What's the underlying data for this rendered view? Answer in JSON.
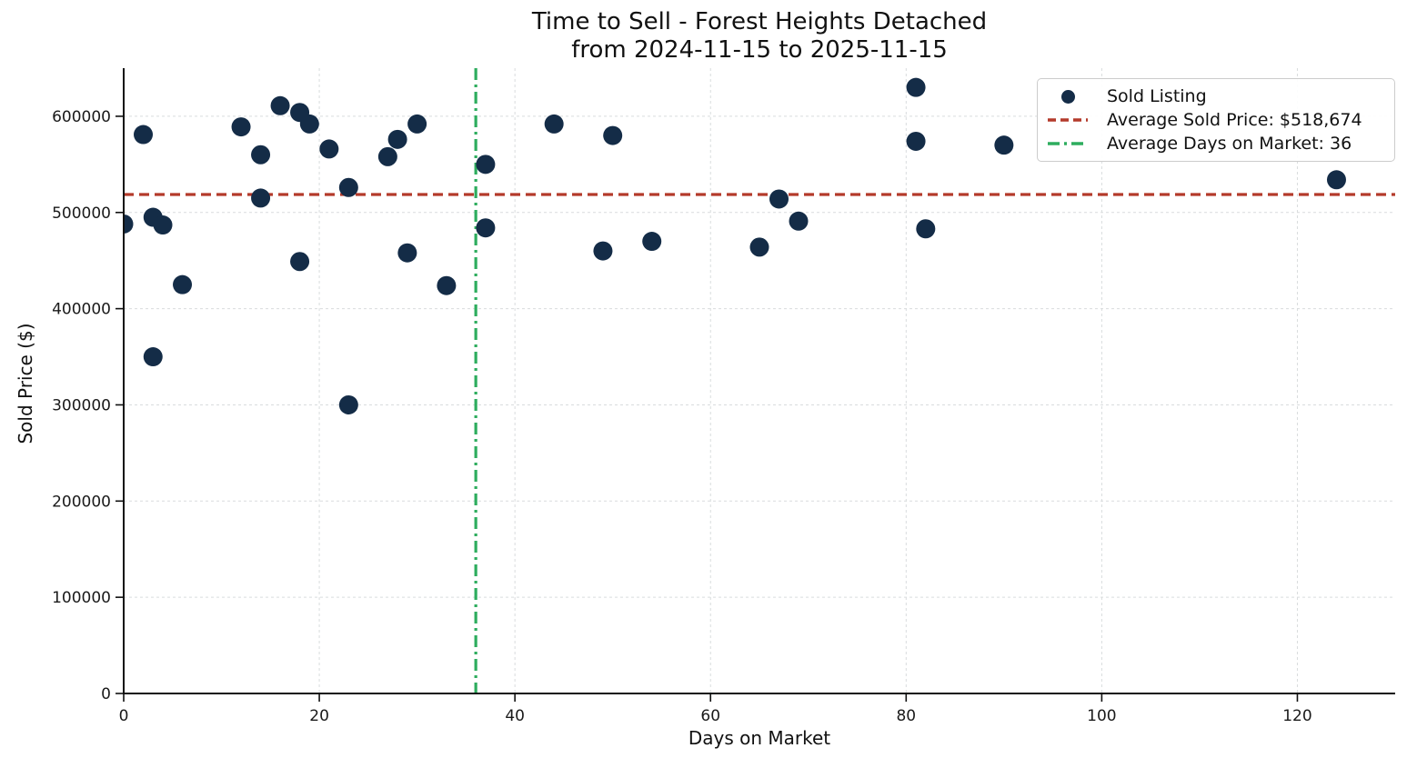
{
  "title": {
    "line1": "Time to Sell - Forest Heights Detached",
    "line2": "from 2024-11-15 to 2025-11-15"
  },
  "axes": {
    "xlabel": "Days on Market",
    "ylabel": "Sold Price ($)"
  },
  "legend": {
    "items": [
      {
        "label": "Sold Listing",
        "marker": "dot"
      },
      {
        "label": "Average Sold Price: $518,674",
        "marker": "red-dashed-line"
      },
      {
        "label": "Average Days on Market: 36",
        "marker": "green-dashdot-line"
      }
    ]
  },
  "colors": {
    "point": "#142c47",
    "avg_price_line": "#b43a2b",
    "avg_days_line": "#2ead5e",
    "grid": "#d9dcdd",
    "axis": "#111111",
    "tick_label": "#1a1a1a"
  },
  "chart_data": {
    "type": "scatter",
    "title": "Time to Sell - Forest Heights Detached",
    "subtitle": "from 2024-11-15 to 2025-11-15",
    "xlabel": "Days on Market",
    "ylabel": "Sold Price ($)",
    "xlim": [
      0,
      130
    ],
    "ylim": [
      0,
      650000
    ],
    "x_ticks": [
      0,
      20,
      40,
      60,
      80,
      100,
      120
    ],
    "y_ticks": [
      0,
      100000,
      200000,
      300000,
      400000,
      500000,
      600000
    ],
    "grid": true,
    "legend_position": "upper right",
    "avg_sold_price": 518674,
    "avg_days_on_market": 36,
    "series": [
      {
        "name": "Sold Listing",
        "points": [
          [
            0,
            488000
          ],
          [
            2,
            581000
          ],
          [
            3,
            495000
          ],
          [
            4,
            487000
          ],
          [
            3,
            350000
          ],
          [
            6,
            425000
          ],
          [
            12,
            589000
          ],
          [
            14,
            560000
          ],
          [
            14,
            515000
          ],
          [
            16,
            611000
          ],
          [
            18,
            604000
          ],
          [
            19,
            592000
          ],
          [
            18,
            449000
          ],
          [
            21,
            566000
          ],
          [
            23,
            526000
          ],
          [
            23,
            300000
          ],
          [
            27,
            558000
          ],
          [
            28,
            576000
          ],
          [
            29,
            458000
          ],
          [
            30,
            592000
          ],
          [
            33,
            424000
          ],
          [
            37,
            550000
          ],
          [
            37,
            484000
          ],
          [
            44,
            592000
          ],
          [
            49,
            460000
          ],
          [
            50,
            580000
          ],
          [
            54,
            470000
          ],
          [
            65,
            464000
          ],
          [
            67,
            514000
          ],
          [
            69,
            491000
          ],
          [
            81,
            630000
          ],
          [
            81,
            574000
          ],
          [
            82,
            483000
          ],
          [
            90,
            570000
          ],
          [
            124,
            534000
          ]
        ]
      }
    ]
  }
}
